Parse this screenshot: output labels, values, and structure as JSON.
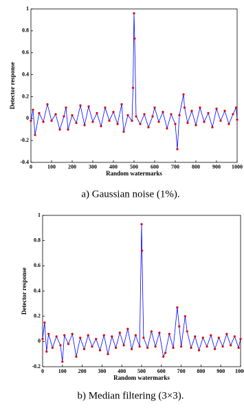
{
  "chart_data": [
    {
      "type": "line",
      "caption": "a) Gaussian noise (1%).",
      "xlabel": "Random watermarks",
      "ylabel": "Detector response",
      "color": "#0000ff",
      "marker_color": "#e00000",
      "x": [
        0,
        10,
        20,
        40,
        60,
        80,
        100,
        120,
        140,
        160,
        170,
        180,
        200,
        220,
        240,
        260,
        280,
        300,
        320,
        340,
        360,
        380,
        400,
        420,
        440,
        450,
        470,
        490,
        495,
        500,
        503,
        510,
        530,
        550,
        570,
        590,
        600,
        620,
        640,
        660,
        680,
        700,
        710,
        720,
        740,
        745,
        760,
        780,
        800,
        820,
        840,
        860,
        880,
        900,
        920,
        940,
        960,
        980,
        995,
        1000
      ],
      "values": [
        -0.02,
        0.08,
        -0.15,
        0.05,
        -0.03,
        0.13,
        -0.02,
        0.04,
        -0.1,
        0.02,
        0.1,
        -0.1,
        0.03,
        -0.04,
        0.12,
        -0.06,
        0.11,
        -0.03,
        0.05,
        -0.07,
        0.1,
        -0.02,
        0.06,
        -0.05,
        0.13,
        -0.12,
        0.03,
        -0.02,
        0.28,
        0.96,
        0.73,
        0.02,
        -0.05,
        0.04,
        -0.08,
        0.02,
        0.1,
        -0.03,
        0.06,
        -0.09,
        0.04,
        -0.05,
        -0.28,
        0.03,
        0.22,
        0.1,
        -0.04,
        0.07,
        -0.06,
        0.1,
        -0.03,
        0.05,
        -0.08,
        0.09,
        -0.02,
        0.07,
        -0.05,
        0.04,
        0.1,
        -0.01
      ],
      "xlim": [
        0,
        1000
      ],
      "xticks": [
        0,
        100,
        200,
        300,
        400,
        500,
        600,
        700,
        800,
        900,
        1000
      ],
      "ylim": [
        -0.4,
        1
      ],
      "yticks": [
        -0.4,
        -0.2,
        0,
        0.2,
        0.4,
        0.6,
        0.8,
        1
      ]
    },
    {
      "type": "line",
      "caption": "b) Median filtering (3×3).",
      "xlabel": "Random watermarks",
      "ylabel": "Detector response",
      "color": "#0000ff",
      "marker_color": "#e00000",
      "x": [
        0,
        10,
        20,
        30,
        50,
        70,
        90,
        100,
        110,
        130,
        150,
        170,
        190,
        210,
        230,
        250,
        270,
        290,
        310,
        330,
        350,
        370,
        390,
        410,
        430,
        450,
        470,
        490,
        500,
        502,
        510,
        530,
        550,
        570,
        590,
        610,
        620,
        640,
        660,
        680,
        690,
        700,
        720,
        730,
        750,
        770,
        790,
        810,
        830,
        850,
        870,
        890,
        910,
        930,
        950,
        970,
        990,
        1000
      ],
      "values": [
        0.02,
        0.15,
        -0.08,
        0.06,
        -0.05,
        0.04,
        -0.03,
        -0.16,
        0.05,
        -0.02,
        0.06,
        -0.12,
        0.03,
        -0.06,
        0.05,
        -0.04,
        0.02,
        -0.07,
        0.05,
        -0.1,
        0.04,
        -0.05,
        0.07,
        -0.03,
        0.1,
        -0.06,
        0.05,
        -0.04,
        0.93,
        0.72,
        0.03,
        -0.05,
        0.08,
        -0.04,
        0.07,
        -0.12,
        -0.09,
        0.06,
        -0.05,
        0.27,
        0.12,
        -0.04,
        0.2,
        0.08,
        -0.05,
        0.04,
        -0.07,
        0.03,
        -0.04,
        0.05,
        -0.06,
        0.03,
        -0.04,
        0.06,
        -0.03,
        0.04,
        -0.05,
        0.02
      ],
      "xlim": [
        0,
        1000
      ],
      "xticks": [
        0,
        100,
        200,
        300,
        400,
        500,
        600,
        700,
        800,
        900,
        1000
      ],
      "ylim": [
        -0.2,
        1
      ],
      "yticks": [
        -0.2,
        0,
        0.2,
        0.4,
        0.6,
        0.8,
        1
      ]
    }
  ]
}
